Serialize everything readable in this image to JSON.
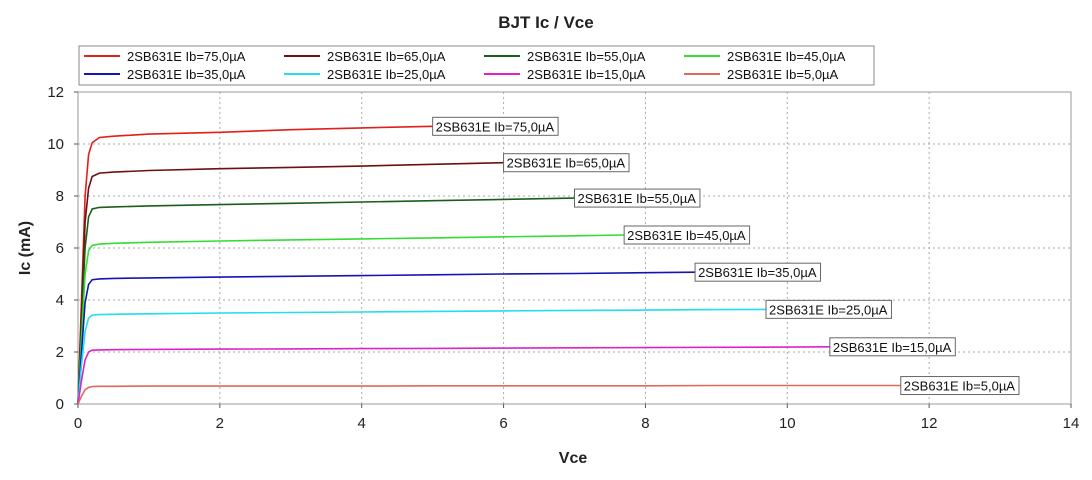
{
  "chart_data": {
    "type": "line",
    "title": "BJT Ic / Vce",
    "xlabel": "Vce",
    "ylabel": "Ic (mA)",
    "xlim": [
      0,
      14
    ],
    "ylim": [
      0,
      12
    ],
    "xticks": [
      0,
      2,
      4,
      6,
      8,
      10,
      12,
      14
    ],
    "yticks": [
      0,
      2,
      4,
      6,
      8,
      10,
      12
    ],
    "grid": true,
    "legend_position": "top",
    "series": [
      {
        "name": "2SB631E Ib=75,0µA",
        "color": "#e0201b",
        "x": [
          0,
          0.05,
          0.1,
          0.15,
          0.2,
          0.3,
          0.5,
          1,
          2,
          3,
          4,
          5
        ],
        "y": [
          0,
          4.0,
          8.0,
          9.6,
          10.05,
          10.25,
          10.3,
          10.38,
          10.45,
          10.55,
          10.62,
          10.68
        ]
      },
      {
        "name": "2SB631E Ib=65,0µA",
        "color": "#6b1111",
        "x": [
          0,
          0.05,
          0.1,
          0.15,
          0.2,
          0.3,
          0.5,
          1,
          2,
          3,
          4,
          5,
          6
        ],
        "y": [
          0,
          3.5,
          7.0,
          8.3,
          8.75,
          8.88,
          8.92,
          8.98,
          9.05,
          9.1,
          9.15,
          9.22,
          9.28
        ]
      },
      {
        "name": "2SB631E Ib=55,0µA",
        "color": "#1a5e1a",
        "x": [
          0,
          0.05,
          0.1,
          0.15,
          0.2,
          0.3,
          0.5,
          1,
          2,
          3,
          4,
          5,
          6,
          7
        ],
        "y": [
          0,
          3.0,
          6.0,
          7.2,
          7.5,
          7.56,
          7.58,
          7.62,
          7.67,
          7.72,
          7.77,
          7.82,
          7.87,
          7.92
        ]
      },
      {
        "name": "2SB631E Ib=45,0µA",
        "color": "#33dd33",
        "x": [
          0,
          0.05,
          0.1,
          0.15,
          0.2,
          0.3,
          0.5,
          1,
          2,
          3,
          4,
          5,
          6,
          7,
          7.7
        ],
        "y": [
          0,
          2.5,
          5.0,
          5.9,
          6.1,
          6.15,
          6.18,
          6.22,
          6.27,
          6.31,
          6.35,
          6.39,
          6.43,
          6.47,
          6.5
        ]
      },
      {
        "name": "2SB631E Ib=35,0µA",
        "color": "#1414b4",
        "x": [
          0,
          0.05,
          0.1,
          0.15,
          0.2,
          0.3,
          0.5,
          1,
          2,
          3,
          4,
          5,
          6,
          7,
          8,
          8.7
        ],
        "y": [
          0,
          2.0,
          3.9,
          4.6,
          4.78,
          4.81,
          4.83,
          4.85,
          4.88,
          4.91,
          4.94,
          4.97,
          5.0,
          5.02,
          5.05,
          5.07
        ]
      },
      {
        "name": "2SB631E Ib=25,0µA",
        "color": "#22ddee",
        "x": [
          0,
          0.05,
          0.1,
          0.15,
          0.2,
          0.3,
          0.5,
          1,
          2,
          3,
          4,
          5,
          6,
          7,
          8,
          9,
          9.7
        ],
        "y": [
          0,
          1.5,
          2.8,
          3.3,
          3.42,
          3.44,
          3.45,
          3.47,
          3.5,
          3.52,
          3.54,
          3.56,
          3.58,
          3.6,
          3.61,
          3.63,
          3.64
        ]
      },
      {
        "name": "2SB631E Ib=15,0µA",
        "color": "#dd22cc",
        "x": [
          0,
          0.05,
          0.1,
          0.15,
          0.2,
          0.3,
          0.5,
          1,
          2,
          3,
          4,
          5,
          6,
          7,
          8,
          9,
          10,
          10.6
        ],
        "y": [
          0,
          0.9,
          1.7,
          2.0,
          2.07,
          2.08,
          2.09,
          2.1,
          2.11,
          2.12,
          2.13,
          2.14,
          2.15,
          2.16,
          2.17,
          2.18,
          2.19,
          2.2
        ]
      },
      {
        "name": "2SB631E Ib=5,0µA",
        "color": "#e06a5a",
        "x": [
          0,
          0.05,
          0.1,
          0.15,
          0.2,
          0.3,
          0.5,
          1,
          2,
          3,
          4,
          5,
          6,
          7,
          8,
          9,
          10,
          11,
          11.6
        ],
        "y": [
          0,
          0.3,
          0.55,
          0.64,
          0.67,
          0.68,
          0.68,
          0.69,
          0.69,
          0.69,
          0.69,
          0.7,
          0.7,
          0.7,
          0.7,
          0.71,
          0.71,
          0.71,
          0.71
        ]
      }
    ]
  }
}
